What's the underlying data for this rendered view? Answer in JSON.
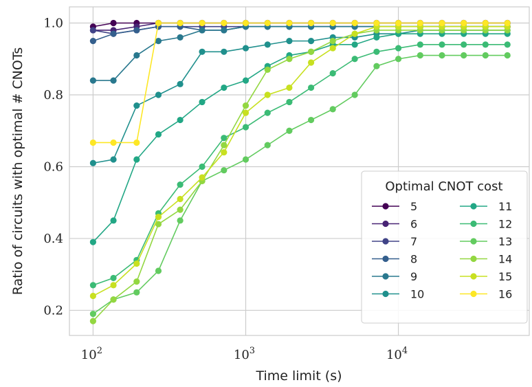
{
  "chart_data": {
    "type": "line",
    "xlabel": "Time limit (s)",
    "ylabel": "Ratio of circuits with optimal # CNOTs",
    "xscale": "log",
    "xlim": [
      70,
      72000
    ],
    "ylim": [
      0.13,
      1.045
    ],
    "x_ticks": [
      100,
      1000,
      10000
    ],
    "x_tick_labels": [
      {
        "base": "10",
        "exp": "2"
      },
      {
        "base": "10",
        "exp": "3"
      },
      {
        "base": "10",
        "exp": "4"
      }
    ],
    "y_ticks": [
      0.2,
      0.4,
      0.6,
      0.8,
      1.0
    ],
    "y_tick_labels": [
      "0.2",
      "0.4",
      "0.6",
      "0.8",
      "1.0"
    ],
    "grid": true,
    "legend_title": "Optimal CNOT cost",
    "legend_placement": "lower-right",
    "x": [
      100,
      136,
      193,
      268,
      372,
      518,
      720,
      1000,
      1390,
      1930,
      2680,
      3720,
      5180,
      7200,
      10000,
      13900,
      19300,
      26800,
      37200,
      51800
    ],
    "series": [
      {
        "name": "5",
        "color": "#440154",
        "values": [
          0.99,
          1.0,
          1.0,
          1.0,
          1.0,
          1.0,
          1.0,
          1.0,
          1.0,
          1.0,
          1.0,
          1.0,
          1.0,
          1.0,
          1.0,
          1.0,
          1.0,
          1.0,
          1.0,
          1.0
        ]
      },
      {
        "name": "6",
        "color": "#482374",
        "values": [
          0.98,
          0.98,
          0.99,
          1.0,
          1.0,
          1.0,
          1.0,
          1.0,
          1.0,
          1.0,
          1.0,
          1.0,
          1.0,
          1.0,
          1.0,
          1.0,
          1.0,
          1.0,
          1.0,
          1.0
        ]
      },
      {
        "name": "7",
        "color": "#404387",
        "values": [
          0.98,
          0.97,
          0.98,
          0.99,
          0.99,
          0.99,
          0.99,
          0.99,
          0.99,
          0.99,
          0.99,
          0.99,
          0.99,
          0.99,
          0.99,
          0.99,
          0.99,
          0.99,
          0.99,
          0.99
        ]
      },
      {
        "name": "8",
        "color": "#345f8d",
        "values": [
          0.95,
          0.97,
          0.98,
          0.99,
          0.99,
          0.98,
          0.98,
          0.99,
          0.99,
          0.99,
          0.99,
          0.99,
          0.99,
          0.99,
          0.99,
          0.99,
          0.99,
          0.99,
          0.99,
          0.99
        ]
      },
      {
        "name": "9",
        "color": "#29788e",
        "values": [
          0.84,
          0.84,
          0.91,
          0.95,
          0.96,
          0.98,
          0.98,
          0.99,
          0.99,
          0.99,
          0.99,
          0.99,
          0.99,
          0.99,
          0.99,
          0.99,
          0.99,
          0.99,
          0.99,
          0.99
        ]
      },
      {
        "name": "10",
        "color": "#20908d",
        "values": [
          0.61,
          0.62,
          0.77,
          0.8,
          0.83,
          0.92,
          0.92,
          0.93,
          0.94,
          0.95,
          0.95,
          0.96,
          0.96,
          0.97,
          0.97,
          0.98,
          0.98,
          0.98,
          0.98,
          0.98
        ]
      },
      {
        "name": "11",
        "color": "#22a785",
        "values": [
          0.39,
          0.45,
          0.62,
          0.69,
          0.73,
          0.78,
          0.82,
          0.84,
          0.88,
          0.91,
          0.92,
          0.94,
          0.94,
          0.96,
          0.97,
          0.97,
          0.97,
          0.97,
          0.97,
          0.97
        ]
      },
      {
        "name": "12",
        "color": "#3bbb75",
        "values": [
          0.27,
          0.29,
          0.34,
          0.47,
          0.55,
          0.6,
          0.68,
          0.71,
          0.75,
          0.78,
          0.82,
          0.86,
          0.9,
          0.92,
          0.93,
          0.94,
          0.94,
          0.94,
          0.94,
          0.94
        ]
      },
      {
        "name": "13",
        "color": "#62cb5f",
        "values": [
          0.19,
          0.23,
          0.25,
          0.31,
          0.45,
          0.56,
          0.59,
          0.62,
          0.66,
          0.7,
          0.73,
          0.76,
          0.8,
          0.88,
          0.9,
          0.91,
          0.91,
          0.91,
          0.91,
          0.91
        ]
      },
      {
        "name": "14",
        "color": "#93d741",
        "values": [
          0.17,
          0.23,
          0.28,
          0.44,
          0.48,
          0.56,
          0.66,
          0.77,
          0.87,
          0.9,
          0.92,
          0.95,
          0.97,
          0.98,
          0.98,
          0.98,
          0.98,
          0.98,
          0.98,
          0.98
        ]
      },
      {
        "name": "15",
        "color": "#c8e020",
        "values": [
          0.24,
          0.27,
          0.33,
          0.46,
          0.51,
          0.57,
          0.64,
          0.75,
          0.8,
          0.82,
          0.89,
          0.93,
          0.97,
          0.99,
          0.99,
          0.99,
          0.99,
          0.99,
          0.99,
          0.99
        ]
      },
      {
        "name": "16",
        "color": "#fde725",
        "values": [
          0.667,
          0.667,
          0.667,
          1.0,
          1.0,
          1.0,
          1.0,
          1.0,
          1.0,
          1.0,
          1.0,
          1.0,
          1.0,
          1.0,
          1.0,
          1.0,
          1.0,
          1.0,
          1.0,
          1.0
        ]
      }
    ]
  }
}
